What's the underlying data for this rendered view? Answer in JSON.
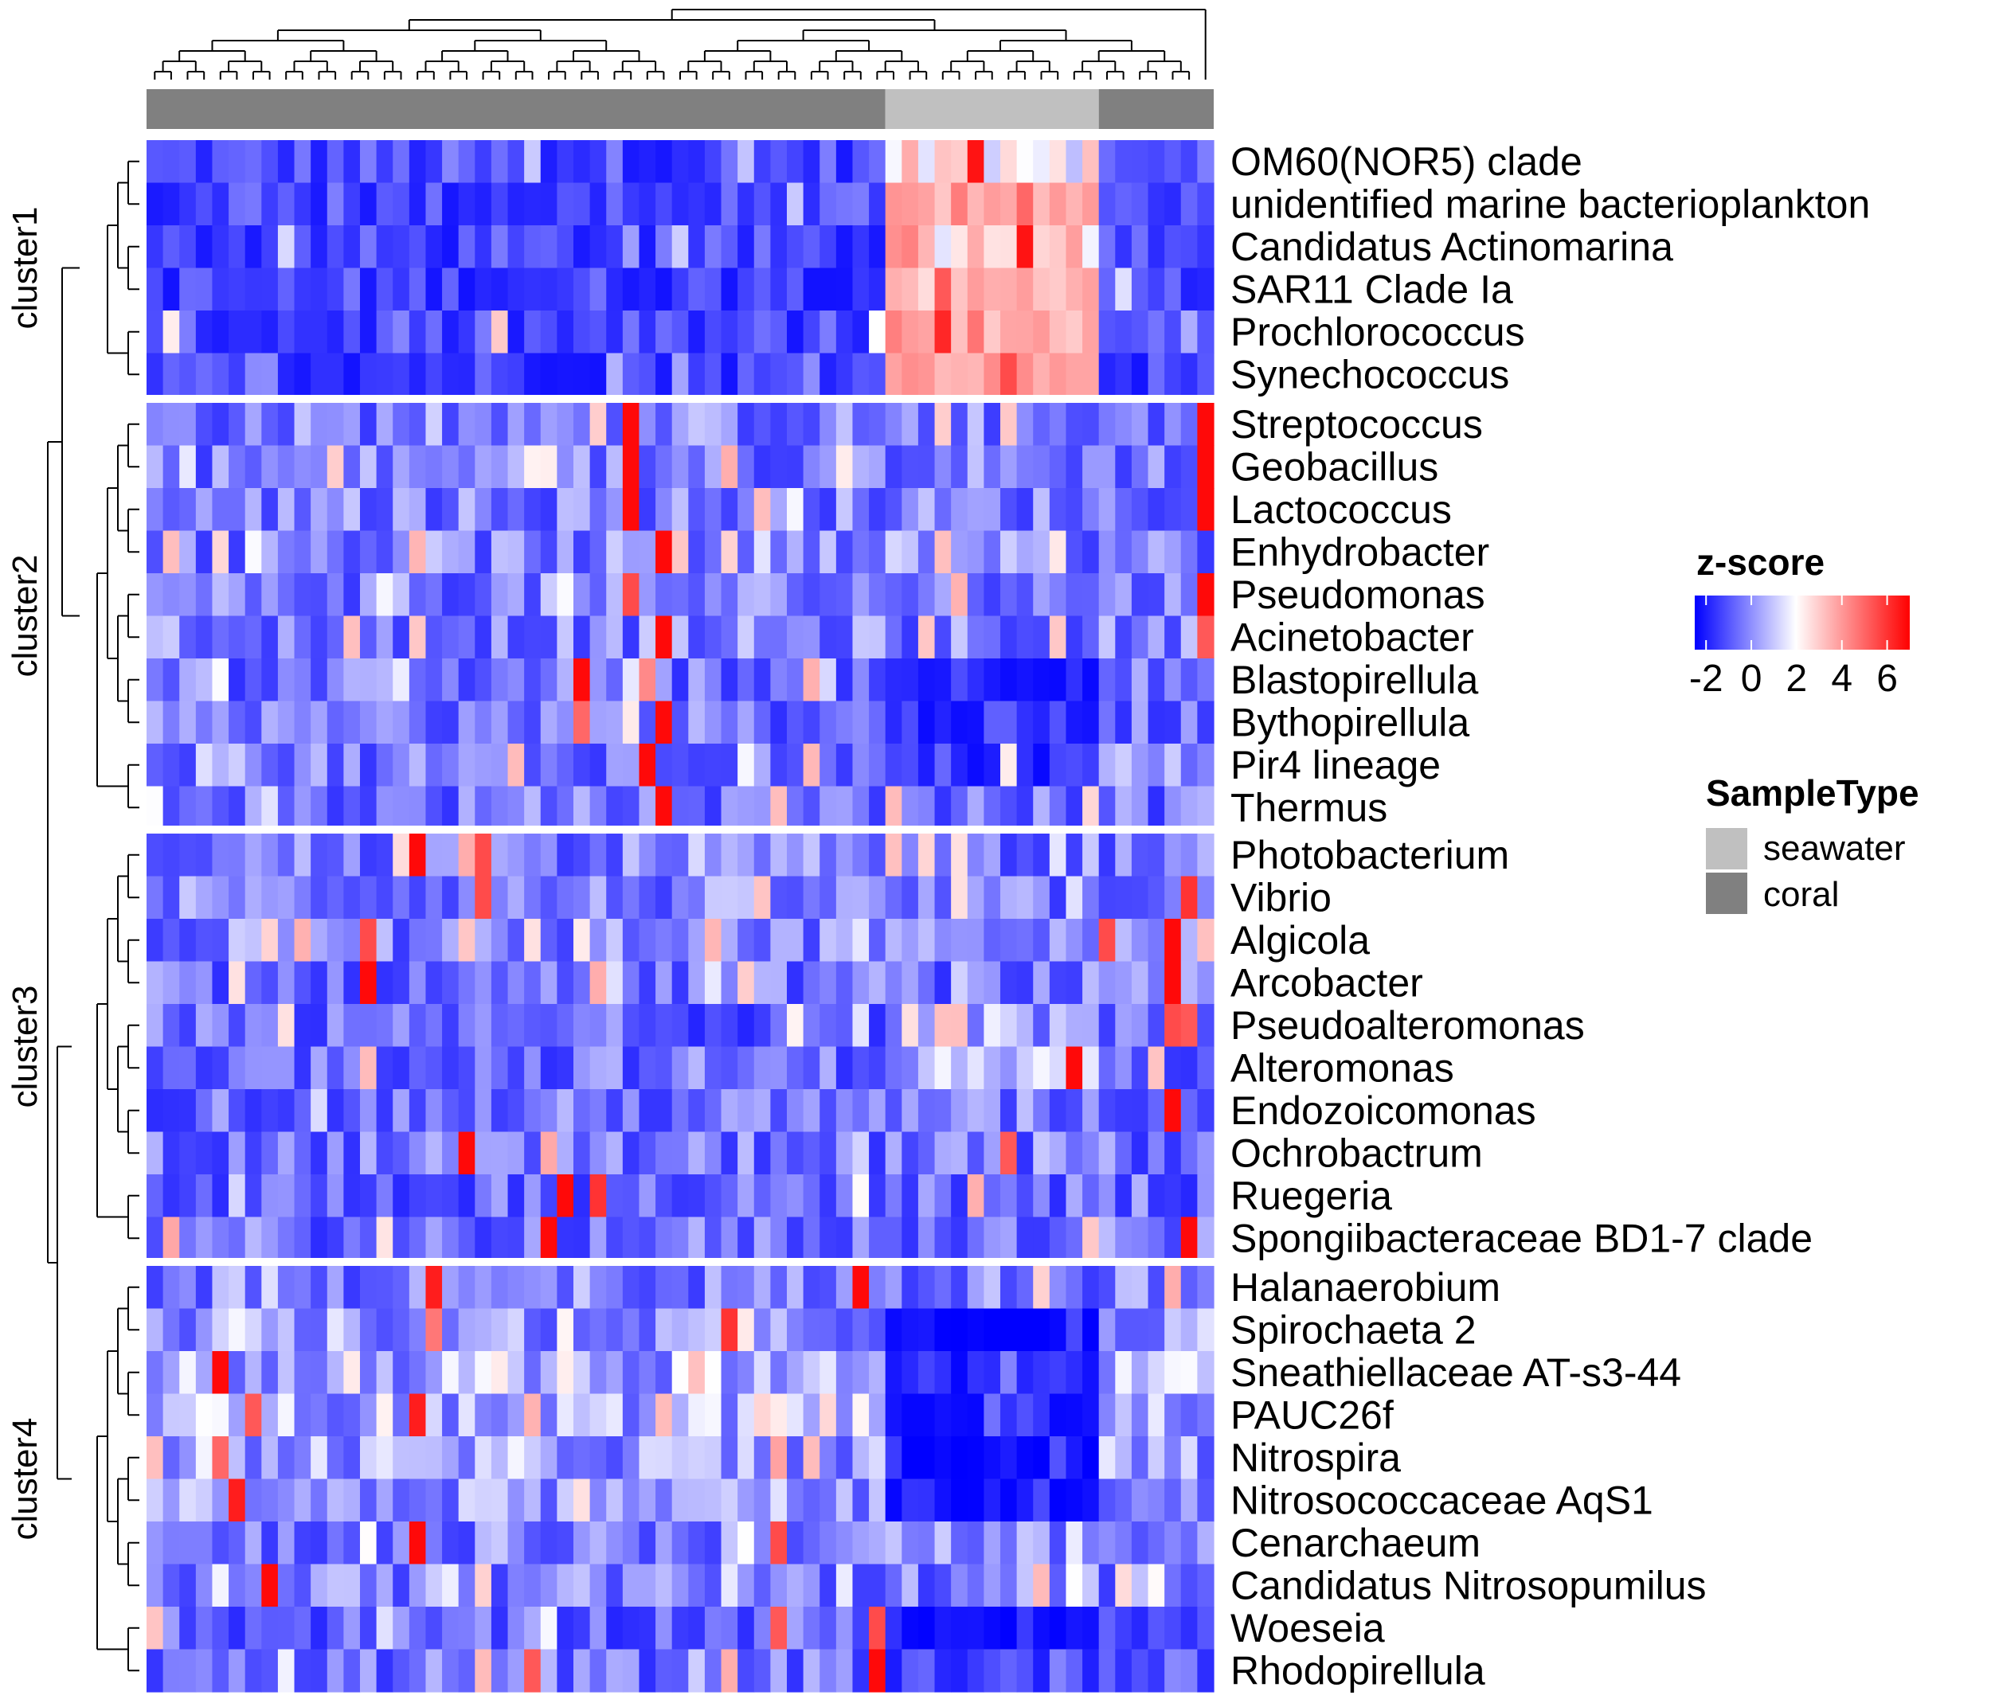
{
  "chart_data": {
    "type": "heatmap",
    "title": "",
    "xlabel": "",
    "ylabel": "",
    "n_samples": 65,
    "sample_type_annotation": [
      {
        "type": "coral",
        "from": 0,
        "to": 44
      },
      {
        "type": "seawater",
        "from": 45,
        "to": 57
      },
      {
        "type": "coral",
        "from": 58,
        "to": 64
      }
    ],
    "clusters": [
      {
        "name": "cluster1",
        "rows": [
          "OM60(NOR5) clade",
          "unidentified marine bacterioplankton",
          "Candidatus Actinomarina",
          "SAR11 Clade Ia",
          "Prochlorococcus",
          "Synechococcus"
        ]
      },
      {
        "name": "cluster2",
        "rows": [
          "Streptococcus",
          "Geobacillus",
          "Lactococcus",
          "Enhydrobacter",
          "Pseudomonas",
          "Acinetobacter",
          "Blastopirellula",
          "Bythopirellula",
          "Pir4 lineage",
          "Thermus"
        ]
      },
      {
        "name": "cluster3",
        "rows": [
          "Photobacterium",
          "Vibrio",
          "Algicola",
          "Arcobacter",
          "Pseudoalteromonas",
          "Alteromonas",
          "Endozoicomonas",
          "Ochrobactrum",
          "Ruegeria",
          "Spongiibacteraceae BD1-7 clade"
        ]
      },
      {
        "name": "cluster4",
        "rows": [
          "Halanaerobium",
          "Spirochaeta 2",
          "Sneathiellaceae AT-s3-44",
          "PAUC26f",
          "Nitrospira",
          "Nitrosococcaceae AqS1",
          "Cenarchaeum",
          "Candidatus Nitrosopumilus",
          "Woeseia",
          "Rhodopirellula"
        ]
      }
    ],
    "row_profiles": {
      "OM60(NOR5) clade": {
        "base": -1.2,
        "coral": -1.2,
        "seawater": 0.2,
        "peaks": [
          [
            50,
            6
          ]
        ]
      },
      "unidentified marine bacterioplankton": {
        "base": -1.3,
        "coral": -1.3,
        "seawater": 0.8,
        "peaks": [
          [
            53,
            2.5
          ]
        ]
      },
      "Candidatus Actinomarina": {
        "base": -1.3,
        "coral": -1.3,
        "seawater": 0.4,
        "peaks": [
          [
            53,
            6
          ]
        ]
      },
      "SAR11 Clade Ia": {
        "base": -1.3,
        "coral": -1.3,
        "seawater": 0.6,
        "peaks": [
          [
            48,
            3
          ]
        ]
      },
      "Prochlorococcus": {
        "base": -1.3,
        "coral": -1.3,
        "seawater": 0.6,
        "peaks": [
          [
            48,
            5
          ]
        ]
      },
      "Synechococcus": {
        "base": -1.3,
        "coral": -1.3,
        "seawater": 1.0,
        "peaks": [
          [
            52,
            3.5
          ]
        ]
      },
      "Streptococcus": {
        "base": -0.8,
        "coral": -0.8,
        "seawater": -0.8,
        "peaks": [
          [
            29,
            6.5
          ],
          [
            64,
            6.5
          ]
        ]
      },
      "Geobacillus": {
        "base": -0.8,
        "coral": -0.8,
        "seawater": -0.8,
        "peaks": [
          [
            29,
            6.5
          ],
          [
            64,
            6.5
          ]
        ]
      },
      "Lactococcus": {
        "base": -0.8,
        "coral": -0.8,
        "seawater": -0.8,
        "peaks": [
          [
            29,
            6.5
          ],
          [
            64,
            6.5
          ]
        ]
      },
      "Enhydrobacter": {
        "base": -0.8,
        "coral": -0.8,
        "seawater": -0.8,
        "peaks": [
          [
            31,
            6.5
          ]
        ]
      },
      "Pseudomonas": {
        "base": -0.8,
        "coral": -0.8,
        "seawater": -0.8,
        "peaks": [
          [
            29,
            3.5
          ],
          [
            64,
            6.5
          ]
        ]
      },
      "Acinetobacter": {
        "base": -0.8,
        "coral": -0.8,
        "seawater": -0.8,
        "peaks": [
          [
            31,
            6.5
          ],
          [
            64,
            3
          ]
        ]
      },
      "Blastopirellula": {
        "base": -1.0,
        "coral": -0.9,
        "seawater": -1.5,
        "peaks": [
          [
            26,
            6.5
          ],
          [
            30,
            1.5
          ]
        ]
      },
      "Bythopirellula": {
        "base": -1.0,
        "coral": -0.9,
        "seawater": -1.5,
        "peaks": [
          [
            31,
            6.5
          ],
          [
            26,
            2.5
          ]
        ]
      },
      "Pir4 lineage": {
        "base": -1.0,
        "coral": -0.8,
        "seawater": -1.5,
        "peaks": [
          [
            30,
            6.5
          ],
          [
            22,
            0.5
          ]
        ]
      },
      "Thermus": {
        "base": -0.9,
        "coral": -0.9,
        "seawater": -0.9,
        "peaks": [
          [
            31,
            6.5
          ]
        ]
      },
      "Photobacterium": {
        "base": -0.8,
        "coral": -0.8,
        "seawater": -0.8,
        "peaks": [
          [
            16,
            6.5
          ],
          [
            20,
            3.5
          ]
        ]
      },
      "Vibrio": {
        "base": -0.8,
        "coral": -0.8,
        "seawater": -0.9,
        "peaks": [
          [
            20,
            3.5
          ],
          [
            63,
            4.5
          ]
        ]
      },
      "Algicola": {
        "base": -0.8,
        "coral": -0.8,
        "seawater": -0.8,
        "peaks": [
          [
            13,
            3.5
          ],
          [
            62,
            6.5
          ],
          [
            58,
            3.5
          ]
        ]
      },
      "Arcobacter": {
        "base": -0.9,
        "coral": -0.9,
        "seawater": -0.9,
        "peaks": [
          [
            13,
            6.5
          ],
          [
            62,
            6.5
          ]
        ]
      },
      "Pseudoalteromonas": {
        "base": -1.0,
        "coral": -1.0,
        "seawater": -0.6,
        "peaks": [
          [
            62,
            3.5
          ],
          [
            63,
            3.0
          ]
        ]
      },
      "Alteromonas": {
        "base": -0.9,
        "coral": -0.9,
        "seawater": -0.5,
        "peaks": [
          [
            56,
            6.5
          ],
          [
            13,
            0.5
          ]
        ]
      },
      "Endozoicomonas": {
        "base": -0.9,
        "coral": -0.9,
        "seawater": -0.9,
        "peaks": [
          [
            62,
            6.5
          ]
        ]
      },
      "Ochrobactrum": {
        "base": -0.9,
        "coral": -0.9,
        "seawater": -0.9,
        "peaks": [
          [
            19,
            6.5
          ],
          [
            24,
            0.8
          ],
          [
            52,
            3.0
          ]
        ]
      },
      "Ruegeria": {
        "base": -1.0,
        "coral": -1.0,
        "seawater": -1.0,
        "peaks": [
          [
            25,
            6.5
          ],
          [
            27,
            4.5
          ]
        ]
      },
      "Spongiibacteraceae BD1-7 clade": {
        "base": -0.9,
        "coral": -0.9,
        "seawater": -0.9,
        "peaks": [
          [
            24,
            6.5
          ],
          [
            63,
            6.5
          ]
        ]
      },
      "Halanaerobium": {
        "base": -0.8,
        "coral": -0.8,
        "seawater": -0.8,
        "peaks": [
          [
            17,
            5.5
          ],
          [
            43,
            6.5
          ]
        ]
      },
      "Spirochaeta 2": {
        "base": -1.0,
        "coral": -0.6,
        "seawater": -2.0,
        "peaks": [
          [
            35,
            4.5
          ],
          [
            17,
            2.0
          ]
        ]
      },
      "Sneathiellaceae AT-s3-44": {
        "base": -1.0,
        "coral": -0.5,
        "seawater": -1.6,
        "peaks": [
          [
            4,
            6.5
          ]
        ]
      },
      "PAUC26f": {
        "base": -1.0,
        "coral": -0.5,
        "seawater": -1.6,
        "peaks": [
          [
            16,
            5.5
          ],
          [
            6,
            3.0
          ]
        ]
      },
      "Nitrospira": {
        "base": -1.2,
        "coral": -0.6,
        "seawater": -2.2,
        "peaks": [
          [
            4,
            2.5
          ]
        ]
      },
      "Nitrosococcaceae AqS1": {
        "base": -1.1,
        "coral": -0.6,
        "seawater": -1.8,
        "peaks": [
          [
            5,
            5.5
          ]
        ]
      },
      "Cenarchaeum": {
        "base": -0.8,
        "coral": -0.8,
        "seawater": -0.8,
        "peaks": [
          [
            16,
            6.5
          ],
          [
            38,
            3.5
          ]
        ]
      },
      "Candidatus Nitrosopumilus": {
        "base": -0.8,
        "coral": -0.8,
        "seawater": -0.8,
        "peaks": [
          [
            7,
            6.5
          ]
        ]
      },
      "Woeseia": {
        "base": -1.2,
        "coral": -1.0,
        "seawater": -1.8,
        "peaks": [
          [
            38,
            3.0
          ],
          [
            44,
            3.5
          ]
        ]
      },
      "Rhodopirellula": {
        "base": -1.0,
        "coral": -0.9,
        "seawater": -1.2,
        "peaks": [
          [
            44,
            6.5
          ],
          [
            23,
            3.0
          ]
        ]
      }
    },
    "color_scale": {
      "title": "z-score",
      "ticks": [
        -2,
        0,
        2,
        4,
        6
      ],
      "range": [
        -2.5,
        7
      ],
      "low": "#0000ff",
      "mid": "#ffffff",
      "high": "#ff0000"
    },
    "sample_type_legend": {
      "title": "SampleType",
      "items": [
        {
          "label": "seawater",
          "color": "#c0c0c0"
        },
        {
          "label": "coral",
          "color": "#808080"
        }
      ]
    }
  }
}
